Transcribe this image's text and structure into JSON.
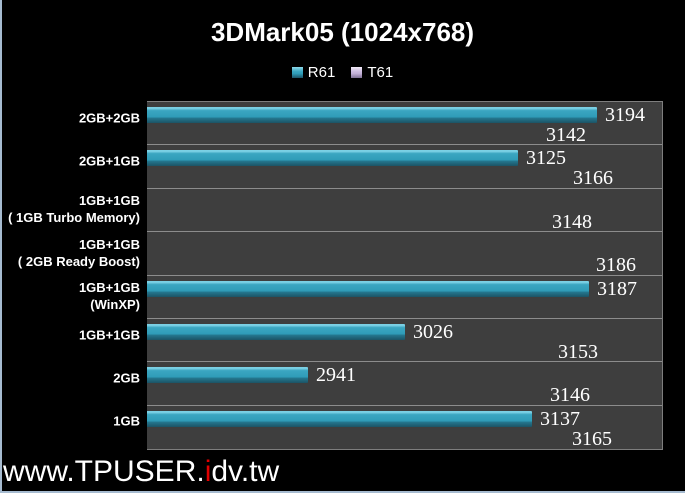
{
  "title": "3DMark05 (1024x768)",
  "watermark": {
    "prefix": "www.TPUSER.",
    "highlight": "i",
    "suffix": "dv.tw"
  },
  "colors": {
    "background": "#000000",
    "plot_background": "#3e3e3e",
    "separator": "#8c8c8c",
    "r61_bar": "#2f9cb8",
    "t61_bar": "#cdbce0",
    "text": "#ffffff",
    "watermark_highlight": "#e10000",
    "frame_edge": "#a6bbd0"
  },
  "chart_data": {
    "type": "bar",
    "orientation": "horizontal",
    "title": "3DMark05 (1024x768)",
    "legend_position": "top-center",
    "grid": "category-separators-only",
    "axis": {
      "min": 2800,
      "max": 3250,
      "tick_labels_visible": false
    },
    "series": [
      {
        "key": "R61",
        "name": "R61",
        "color": "#2f9cb8"
      },
      {
        "key": "T61",
        "name": "T61",
        "color": "#cdbce0"
      }
    ],
    "categories": [
      "2GB+2GB",
      "2GB+1GB",
      "1GB+1GB ( 1GB Turbo Memory)",
      "1GB+1GB ( 2GB Ready Boost)",
      "1GB+1GB (WinXP)",
      "1GB+1GB",
      "2GB",
      "1GB"
    ],
    "rows": [
      {
        "label_lines": [
          "2GB+2GB"
        ],
        "R61": 3194,
        "T61": 3142
      },
      {
        "label_lines": [
          "2GB+1GB"
        ],
        "R61": 3125,
        "T61": 3166
      },
      {
        "label_lines": [
          "1GB+1GB",
          "( 1GB Turbo Memory)"
        ],
        "R61": null,
        "T61": 3148
      },
      {
        "label_lines": [
          "1GB+1GB",
          "( 2GB Ready Boost)"
        ],
        "R61": null,
        "T61": 3186
      },
      {
        "label_lines": [
          "1GB+1GB",
          "(WinXP)"
        ],
        "R61": 3187,
        "T61": null
      },
      {
        "label_lines": [
          "1GB+1GB"
        ],
        "R61": 3026,
        "T61": 3153
      },
      {
        "label_lines": [
          "2GB"
        ],
        "R61": 2941,
        "T61": 3146
      },
      {
        "label_lines": [
          "1GB"
        ],
        "R61": 3137,
        "T61": 3165
      }
    ]
  }
}
